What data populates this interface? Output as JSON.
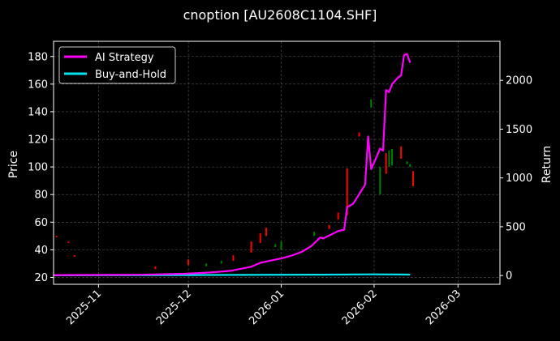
{
  "chart_data": {
    "type": "line",
    "title": "cnoption [AU2608C1104.SHF]",
    "ylabel_left": "Price",
    "ylabel_right": "Return",
    "xlim": [
      "2025-10-17",
      "2026-03-15"
    ],
    "ylim_left": [
      15,
      191
    ],
    "ylim_right": [
      -90,
      2400
    ],
    "left_ticks": [
      20,
      40,
      60,
      80,
      100,
      120,
      140,
      160,
      180
    ],
    "right_ticks": [
      0,
      500,
      1000,
      1500,
      2000
    ],
    "x_ticks": [
      {
        "date": "2025-11-01",
        "label": "2025-11"
      },
      {
        "date": "2025-12-01",
        "label": "2025-12"
      },
      {
        "date": "2026-01-01",
        "label": "2026-01"
      },
      {
        "date": "2026-02-01",
        "label": "2026-02"
      },
      {
        "date": "2026-03-01",
        "label": "2026-03"
      }
    ],
    "grid": true,
    "legend_position": "top-left",
    "colors": {
      "up": "#008000",
      "down": "#ff0000",
      "strategy": "#ff00ff",
      "buyhold": "#00e5ee",
      "grid": "#555555"
    },
    "series": [
      {
        "name": "AI Strategy",
        "axis": "right",
        "points": [
          [
            "2025-10-17",
            5
          ],
          [
            "2025-11-01",
            6
          ],
          [
            "2025-11-15",
            8
          ],
          [
            "2025-11-30",
            18
          ],
          [
            "2025-12-08",
            30
          ],
          [
            "2025-12-15",
            48
          ],
          [
            "2025-12-22",
            90
          ],
          [
            "2025-12-25",
            130
          ],
          [
            "2025-12-28",
            150
          ],
          [
            "2026-01-01",
            175
          ],
          [
            "2026-01-05",
            210
          ],
          [
            "2026-01-08",
            245
          ],
          [
            "2026-01-11",
            300
          ],
          [
            "2026-01-14",
            390
          ],
          [
            "2026-01-15",
            380
          ],
          [
            "2026-01-17",
            410
          ],
          [
            "2026-01-20",
            455
          ],
          [
            "2026-01-22",
            470
          ],
          [
            "2026-01-23",
            700
          ],
          [
            "2026-01-25",
            735
          ],
          [
            "2026-01-29",
            930
          ],
          [
            "2026-01-30",
            1425
          ],
          [
            "2026-01-31",
            1090
          ],
          [
            "2026-02-02",
            1230
          ],
          [
            "2026-02-03",
            1300
          ],
          [
            "2026-02-04",
            1280
          ],
          [
            "2026-02-05",
            1900
          ],
          [
            "2026-02-06",
            1880
          ],
          [
            "2026-02-07",
            1960
          ],
          [
            "2026-02-09",
            2030
          ],
          [
            "2026-02-10",
            2050
          ],
          [
            "2026-02-11",
            2260
          ],
          [
            "2026-02-12",
            2270
          ],
          [
            "2026-02-13",
            2180
          ]
        ]
      },
      {
        "name": "Buy-and-Hold",
        "axis": "right",
        "points": [
          [
            "2025-10-17",
            2
          ],
          [
            "2025-12-01",
            5
          ],
          [
            "2026-01-15",
            9
          ],
          [
            "2026-02-01",
            12
          ],
          [
            "2026-02-13",
            10
          ]
        ]
      }
    ],
    "candles": [
      {
        "date": "2025-10-18",
        "high": 50,
        "low": 49,
        "dir": "down"
      },
      {
        "date": "2025-10-22",
        "high": 46,
        "low": 45,
        "dir": "down"
      },
      {
        "date": "2025-10-24",
        "high": 36,
        "low": 35,
        "dir": "down"
      },
      {
        "date": "2025-11-20",
        "high": 28,
        "low": 26,
        "dir": "down"
      },
      {
        "date": "2025-12-01",
        "high": 33,
        "low": 29,
        "dir": "down"
      },
      {
        "date": "2025-12-07",
        "high": 30,
        "low": 28,
        "dir": "up"
      },
      {
        "date": "2025-12-12",
        "high": 32,
        "low": 30,
        "dir": "up"
      },
      {
        "date": "2025-12-16",
        "high": 36,
        "low": 32,
        "dir": "down"
      },
      {
        "date": "2025-12-22",
        "high": 46,
        "low": 38,
        "dir": "down"
      },
      {
        "date": "2025-12-25",
        "high": 52,
        "low": 45,
        "dir": "down"
      },
      {
        "date": "2025-12-27",
        "high": 56,
        "low": 50,
        "dir": "down"
      },
      {
        "date": "2025-12-30",
        "high": 44,
        "low": 42,
        "dir": "up"
      },
      {
        "date": "2026-01-01",
        "high": 46,
        "low": 40,
        "dir": "up"
      },
      {
        "date": "2026-01-12",
        "high": 53,
        "low": 50,
        "dir": "up"
      },
      {
        "date": "2026-01-17",
        "high": 58,
        "low": 55,
        "dir": "down"
      },
      {
        "date": "2026-01-20",
        "high": 67,
        "low": 62,
        "dir": "down"
      },
      {
        "date": "2026-01-23",
        "high": 99,
        "low": 65,
        "dir": "down"
      },
      {
        "date": "2026-01-27",
        "high": 125,
        "low": 122,
        "dir": "down"
      },
      {
        "date": "2026-01-31",
        "high": 149,
        "low": 143,
        "dir": "up"
      },
      {
        "date": "2026-02-03",
        "high": 100,
        "low": 80,
        "dir": "up"
      },
      {
        "date": "2026-02-05",
        "high": 110,
        "low": 95,
        "dir": "down"
      },
      {
        "date": "2026-02-06",
        "high": 112,
        "low": 100,
        "dir": "up"
      },
      {
        "date": "2026-02-07",
        "high": 113,
        "low": 101,
        "dir": "up"
      },
      {
        "date": "2026-02-10",
        "high": 115,
        "low": 106,
        "dir": "down"
      },
      {
        "date": "2026-02-12",
        "high": 104,
        "low": 102,
        "dir": "up"
      },
      {
        "date": "2026-02-13",
        "high": 102,
        "low": 100,
        "dir": "up"
      },
      {
        "date": "2026-02-14",
        "high": 97,
        "low": 86,
        "dir": "down"
      }
    ]
  }
}
